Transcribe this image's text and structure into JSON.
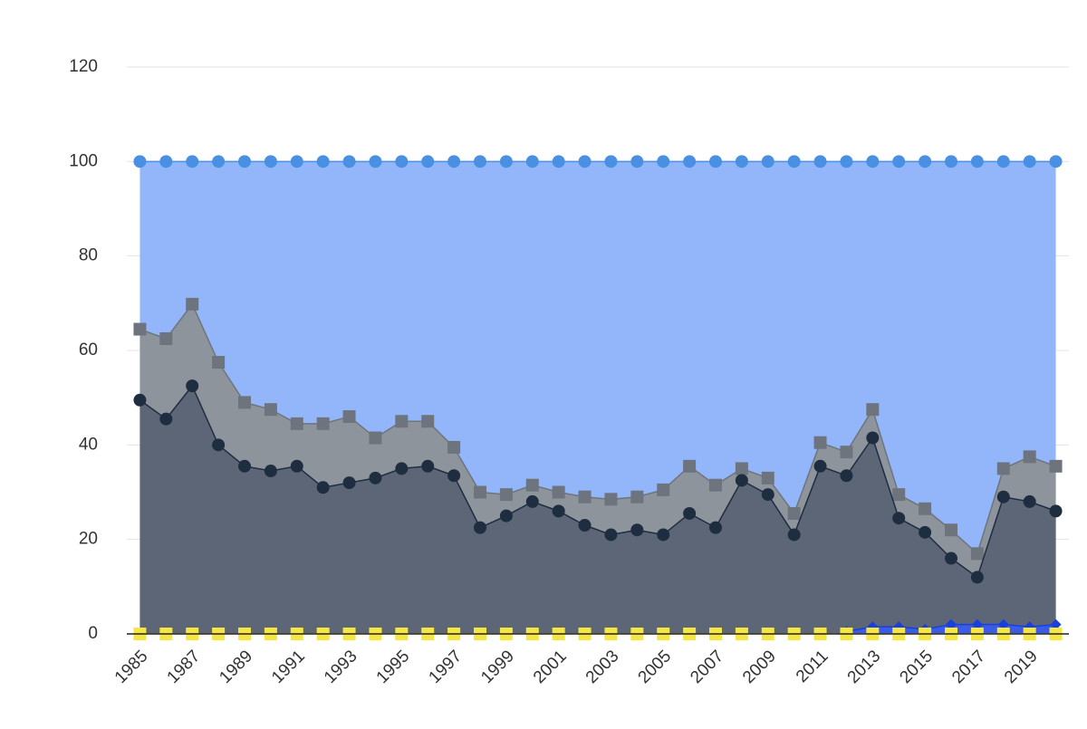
{
  "chart_data": {
    "type": "area",
    "x": [
      1985,
      1986,
      1987,
      1988,
      1989,
      1990,
      1991,
      1992,
      1993,
      1994,
      1995,
      1996,
      1997,
      1998,
      1999,
      2000,
      2001,
      2002,
      2003,
      2004,
      2005,
      2006,
      2007,
      2008,
      2009,
      2010,
      2011,
      2012,
      2013,
      2014,
      2015,
      2016,
      2017,
      2018,
      2019,
      2020
    ],
    "xlim": [
      1984.5,
      2020.5
    ],
    "xticks": [
      1985,
      1987,
      1989,
      1991,
      1993,
      1995,
      1997,
      1999,
      2001,
      2003,
      2005,
      2007,
      2009,
      2011,
      2013,
      2015,
      2017,
      2019
    ],
    "ylim": [
      0,
      120
    ],
    "yticks": [
      0,
      20,
      40,
      60,
      80,
      100,
      120
    ],
    "grid": true,
    "series": [
      {
        "color": "#93b6fb",
        "marker_color": "#4a90e2",
        "marker": "circle",
        "values": [
          100,
          100,
          100,
          100,
          100,
          100,
          100,
          100,
          100,
          100,
          100,
          100,
          100,
          100,
          100,
          100,
          100,
          100,
          100,
          100,
          100,
          100,
          100,
          100,
          100,
          100,
          100,
          100,
          100,
          100,
          100,
          100,
          100,
          100,
          100,
          100
        ]
      },
      {
        "color": "#8e949c",
        "marker_color": "#6d747d",
        "marker": "square",
        "values": [
          64.5,
          62.5,
          69.8,
          57.5,
          49,
          47.5,
          44.5,
          44.5,
          46,
          41.5,
          45,
          45,
          39.5,
          30,
          29.5,
          31.5,
          30,
          29,
          28.5,
          29,
          30.5,
          35.5,
          31.5,
          35,
          33,
          25.5,
          40.5,
          38.5,
          47.5,
          29.5,
          26.5,
          22,
          17,
          35,
          37.5,
          35.5
        ]
      },
      {
        "color": "#5c6676",
        "marker_color": "#1f2d40",
        "marker": "circle",
        "values": [
          49.5,
          45.5,
          52.5,
          40,
          35.5,
          34.5,
          35.5,
          31,
          32,
          33,
          35,
          35.5,
          33.5,
          22.5,
          25,
          28,
          26,
          23,
          21,
          22,
          21,
          25.5,
          22.5,
          32.5,
          29.5,
          21,
          35.5,
          33.5,
          41.5,
          24.5,
          21.5,
          16,
          12,
          29,
          28,
          26
        ]
      },
      {
        "color": "#3a5ce8",
        "marker_color": "#1a3fe0",
        "marker": "diamond",
        "values": [
          null,
          null,
          null,
          null,
          null,
          null,
          null,
          null,
          null,
          null,
          null,
          null,
          null,
          null,
          null,
          null,
          null,
          null,
          null,
          null,
          null,
          null,
          null,
          null,
          null,
          null,
          null,
          0.5,
          1.5,
          1.5,
          1,
          2,
          2,
          2,
          1.5,
          2
        ]
      },
      {
        "color": "#f5e642",
        "marker_color": "#f5e642",
        "marker": "square",
        "values": [
          0,
          0,
          0,
          0,
          0,
          0,
          0,
          0,
          0,
          0,
          0,
          0,
          0,
          0,
          0,
          0,
          0,
          0,
          0,
          0,
          0,
          0,
          0,
          0,
          0,
          0,
          0,
          0,
          0,
          0,
          0,
          0,
          0,
          0,
          0,
          0
        ]
      }
    ]
  }
}
